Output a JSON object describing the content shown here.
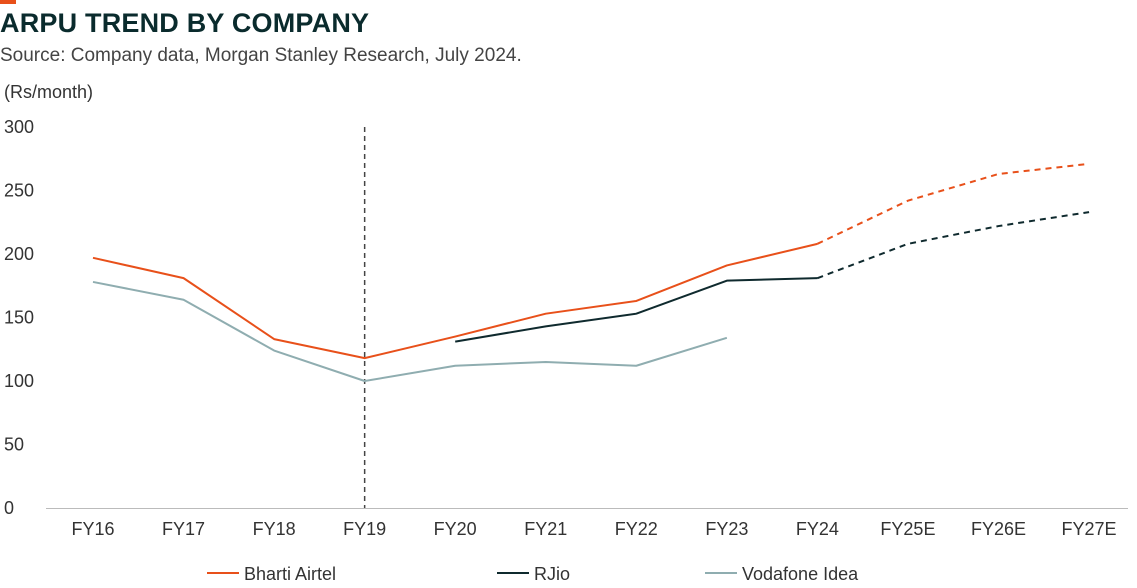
{
  "header": {
    "title": "ARPU TREND BY COMPANY",
    "subtitle": "Source: Company data, Morgan Stanley Research, July 2024."
  },
  "colors": {
    "accent": "#e8501a",
    "bharti_airtel": "#e8501a",
    "rjio": "#0f2a2e",
    "vodafone_idea": "#8fadb0",
    "divider": "#444444"
  },
  "chart_data": {
    "type": "line",
    "title": "ARPU TREND BY COMPANY",
    "ylabel": "(Rs/month)",
    "xlabel": "",
    "ylim": [
      0,
      300
    ],
    "yticks": [
      0,
      50,
      100,
      150,
      200,
      250,
      300
    ],
    "categories": [
      "FY16",
      "FY17",
      "FY18",
      "FY19",
      "FY20",
      "FY21",
      "FY22",
      "FY23",
      "FY24",
      "FY25E",
      "FY26E",
      "FY27E"
    ],
    "estimate_start": "FY25E",
    "divider_at": "FY19",
    "grid": false,
    "legend_position": "bottom",
    "series": [
      {
        "name": "Bharti Airtel",
        "values": [
          197,
          181,
          133,
          118,
          135,
          153,
          163,
          191,
          208,
          242,
          263,
          271
        ]
      },
      {
        "name": "RJio",
        "values": [
          null,
          null,
          null,
          null,
          131,
          143,
          153,
          179,
          181,
          208,
          222,
          233
        ]
      },
      {
        "name": "Vodafone Idea",
        "values": [
          178,
          164,
          124,
          100,
          112,
          115,
          112,
          134,
          null,
          null,
          null,
          null
        ]
      }
    ]
  }
}
